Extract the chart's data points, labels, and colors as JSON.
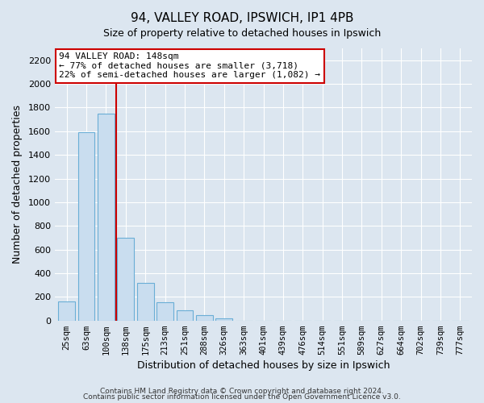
{
  "title": "94, VALLEY ROAD, IPSWICH, IP1 4PB",
  "subtitle": "Size of property relative to detached houses in Ipswich",
  "xlabel": "Distribution of detached houses by size in Ipswich",
  "ylabel": "Number of detached properties",
  "bar_labels": [
    "25sqm",
    "63sqm",
    "100sqm",
    "138sqm",
    "175sqm",
    "213sqm",
    "251sqm",
    "288sqm",
    "326sqm",
    "363sqm",
    "401sqm",
    "439sqm",
    "476sqm",
    "514sqm",
    "551sqm",
    "589sqm",
    "627sqm",
    "664sqm",
    "702sqm",
    "739sqm",
    "777sqm"
  ],
  "bar_values": [
    160,
    1590,
    1750,
    700,
    315,
    155,
    85,
    48,
    20,
    0,
    0,
    0,
    0,
    0,
    0,
    0,
    0,
    0,
    0,
    0,
    0
  ],
  "bar_color": "#c9ddef",
  "bar_edge_color": "#6aaed6",
  "highlight_color": "#cc0000",
  "annotation_title": "94 VALLEY ROAD: 148sqm",
  "annotation_line1": "← 77% of detached houses are smaller (3,718)",
  "annotation_line2": "22% of semi-detached houses are larger (1,082) →",
  "annotation_box_facecolor": "#ffffff",
  "annotation_box_edgecolor": "#cc0000",
  "ylim": [
    0,
    2300
  ],
  "yticks": [
    0,
    200,
    400,
    600,
    800,
    1000,
    1200,
    1400,
    1600,
    1800,
    2000,
    2200
  ],
  "footer1": "Contains HM Land Registry data © Crown copyright and database right 2024.",
  "footer2": "Contains public sector information licensed under the Open Government Licence v3.0.",
  "bg_color": "#dce6f0",
  "grid_color": "#ffffff"
}
